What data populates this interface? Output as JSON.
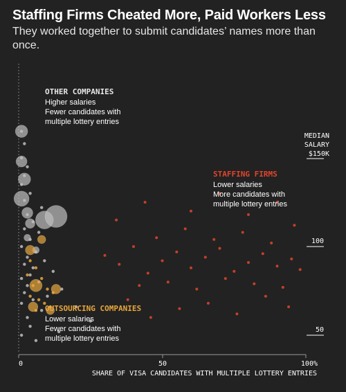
{
  "header": {
    "title": "Staffing Firms Cheated More, Paid Workers Less",
    "subtitle": "They worked together to submit candidates’ names more than once."
  },
  "colors": {
    "background": "#222222",
    "other_companies": "#bfbfbf",
    "staffing_firms": "#e0452c",
    "outsourcing_companies": "#e8a73c",
    "text": "#ffffff"
  },
  "annotations": {
    "other": {
      "heading": "OTHER COMPANIES",
      "line1": "Higher salaries",
      "line2": "Fewer candidates with",
      "line3": "multiple lottery entries"
    },
    "staffing": {
      "heading": "STAFFING FIRMS",
      "line1": "Lower salaries",
      "line2": "More candidates with",
      "line3": "multiple lottery entries"
    },
    "outsourcing": {
      "heading": "OUTSOURCING COMPANIES",
      "line1": "Lower salaries",
      "line2": "Fewer candidates with",
      "line3": "multiple lottery entries"
    }
  },
  "chart_data": {
    "type": "scatter",
    "title": "Staffing Firms Cheated More, Paid Workers Less",
    "subtitle": "They worked together to submit candidates’ names more than once.",
    "xlabel": "SHARE OF VISA CANDIDATES WITH MULTIPLE LOTTERY ENTRIES",
    "ylabel_lines": [
      "MEDIAN",
      "SALARY",
      "$150K"
    ],
    "xlim": [
      0,
      100
    ],
    "ylim": [
      40,
      180
    ],
    "x_ticks": [
      {
        "value": 0,
        "label": "0"
      },
      {
        "value": 50,
        "label": "50"
      },
      {
        "value": 100,
        "label": "100%"
      }
    ],
    "y_ticks": [
      {
        "value": 150,
        "label": ""
      },
      {
        "value": 100,
        "label": "100"
      },
      {
        "value": 50,
        "label": "50"
      }
    ],
    "grid": false,
    "series": [
      {
        "name": "OTHER COMPANIES",
        "color": "#bfbfbf",
        "points": [
          [
            1,
            165
          ],
          [
            2,
            158
          ],
          [
            1,
            150
          ],
          [
            3,
            145
          ],
          [
            2,
            140
          ],
          [
            1,
            135
          ],
          [
            4,
            130
          ],
          [
            2,
            126
          ],
          [
            8,
            122
          ],
          [
            3,
            118
          ],
          [
            5,
            114
          ],
          [
            2,
            110
          ],
          [
            7,
            108
          ],
          [
            4,
            104
          ],
          [
            1,
            100
          ],
          [
            6,
            97
          ],
          [
            3,
            94
          ],
          [
            9,
            92
          ],
          [
            2,
            90
          ],
          [
            5,
            88
          ],
          [
            12,
            86
          ],
          [
            4,
            84
          ],
          [
            1,
            82
          ],
          [
            7,
            80
          ],
          [
            3,
            78
          ],
          [
            15,
            76
          ],
          [
            2,
            74
          ],
          [
            10,
            72
          ],
          [
            5,
            70
          ],
          [
            1,
            68
          ],
          [
            20,
            66
          ],
          [
            8,
            64
          ],
          [
            3,
            60
          ],
          [
            25,
            58
          ],
          [
            4,
            55
          ],
          [
            14,
            52
          ],
          [
            1,
            50
          ],
          [
            6,
            47
          ]
        ],
        "bubbles": [
          [
            1,
            165,
            9
          ],
          [
            1,
            148,
            8
          ],
          [
            2,
            138,
            9
          ],
          [
            1,
            127,
            11
          ],
          [
            3,
            119,
            8
          ],
          [
            4,
            113,
            7
          ],
          [
            9,
            115,
            13
          ],
          [
            13,
            117,
            16
          ],
          [
            6,
            98,
            5
          ],
          [
            3,
            105,
            5
          ]
        ]
      },
      {
        "name": "STAFFING FIRMS",
        "color": "#e0452c",
        "points": [
          [
            30,
            95
          ],
          [
            35,
            90
          ],
          [
            40,
            100
          ],
          [
            45,
            85
          ],
          [
            50,
            92
          ],
          [
            55,
            97
          ],
          [
            60,
            88
          ],
          [
            65,
            94
          ],
          [
            70,
            99
          ],
          [
            75,
            86
          ],
          [
            80,
            91
          ],
          [
            85,
            96
          ],
          [
            90,
            89
          ],
          [
            95,
            93
          ],
          [
            98,
            87
          ],
          [
            42,
            78
          ],
          [
            52,
            80
          ],
          [
            62,
            76
          ],
          [
            72,
            82
          ],
          [
            82,
            79
          ],
          [
            92,
            77
          ],
          [
            48,
            105
          ],
          [
            58,
            110
          ],
          [
            68,
            104
          ],
          [
            78,
            108
          ],
          [
            88,
            102
          ],
          [
            96,
            112
          ],
          [
            38,
            70
          ],
          [
            66,
            68
          ],
          [
            86,
            72
          ],
          [
            56,
            65
          ],
          [
            76,
            62
          ],
          [
            94,
            66
          ],
          [
            46,
            60
          ],
          [
            60,
            120
          ],
          [
            80,
            118
          ],
          [
            70,
            130
          ],
          [
            90,
            125
          ],
          [
            34,
            115
          ],
          [
            44,
            125
          ]
        ]
      },
      {
        "name": "OUTSOURCING COMPANIES",
        "color": "#e8a73c",
        "points": [
          [
            4,
            92
          ],
          [
            6,
            88
          ],
          [
            3,
            84
          ],
          [
            8,
            82
          ],
          [
            5,
            78
          ],
          [
            10,
            76
          ],
          [
            4,
            72
          ],
          [
            7,
            70
          ],
          [
            12,
            74
          ],
          [
            9,
            68
          ],
          [
            6,
            64
          ],
          [
            11,
            66
          ]
        ],
        "bubbles": [
          [
            6,
            78,
            9
          ],
          [
            13,
            76,
            7
          ],
          [
            5,
            66,
            7
          ],
          [
            11,
            64,
            6
          ],
          [
            8,
            104,
            6
          ],
          [
            4,
            98,
            7
          ]
        ]
      }
    ]
  }
}
